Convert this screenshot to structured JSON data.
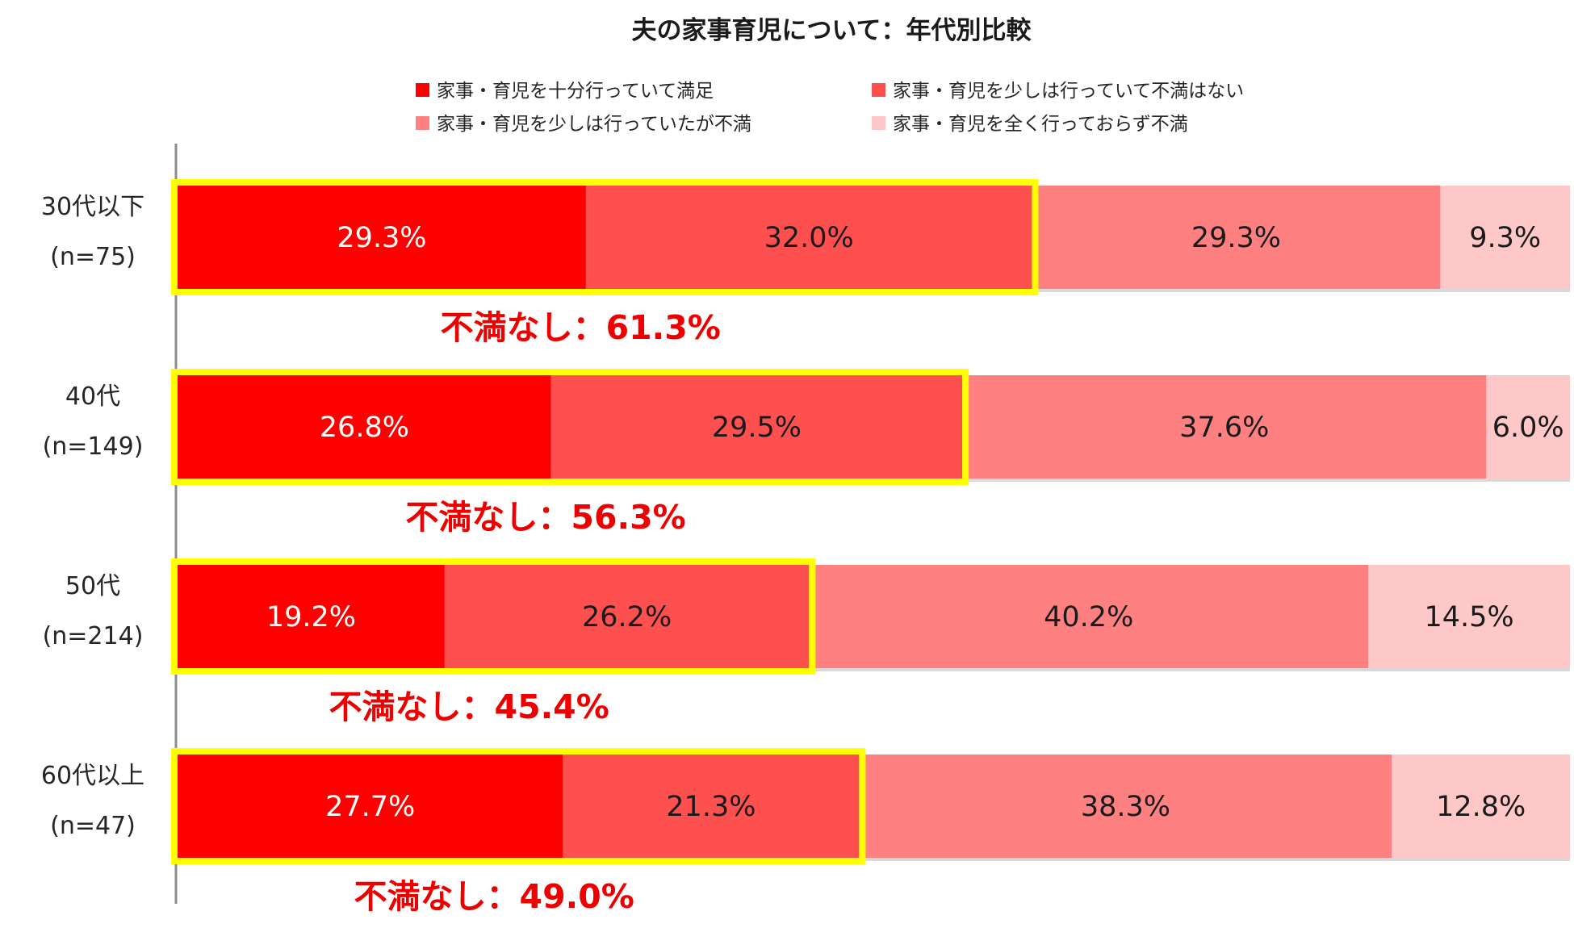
{
  "chart_data": {
    "type": "bar",
    "orientation": "horizontal",
    "stacked": true,
    "title": "夫の家事育児について：年代別比較",
    "categories": [
      {
        "name": "30代以下",
        "n": "(n=75)"
      },
      {
        "name": "40代",
        "n": "(n=149)"
      },
      {
        "name": "50代",
        "n": "(n=214)"
      },
      {
        "name": "60代以上",
        "n": "(n=47)"
      }
    ],
    "series": [
      {
        "name": "家事・育児を十分行っていて満足",
        "color": "#ff0000",
        "label_color": "#ffffff",
        "values": [
          29.3,
          26.8,
          19.2,
          27.7
        ]
      },
      {
        "name": "家事・育児を少しは行っていて不満はない",
        "color": "#ff5050",
        "label_color": "#1a1a1a",
        "values": [
          32.0,
          29.5,
          26.2,
          21.3
        ]
      },
      {
        "name": "家事・育児を少しは行っていたが不満",
        "color": "#ff8080",
        "label_color": "#1a1a1a",
        "values": [
          29.3,
          37.6,
          40.2,
          38.3
        ]
      },
      {
        "name": "家事・育児を全く行っておらず不満",
        "color": "#ffc8c8",
        "label_color": "#1a1a1a",
        "values": [
          9.3,
          6.0,
          14.5,
          12.8
        ]
      }
    ],
    "value_format": "%",
    "legend_position": "top",
    "highlight": {
      "color": "#ffff00",
      "series_covered": 2,
      "labels": [
        "不満なし：61.3%",
        "不満なし：56.3%",
        "不満なし：45.4%",
        "不満なし：49.0%"
      ]
    }
  }
}
